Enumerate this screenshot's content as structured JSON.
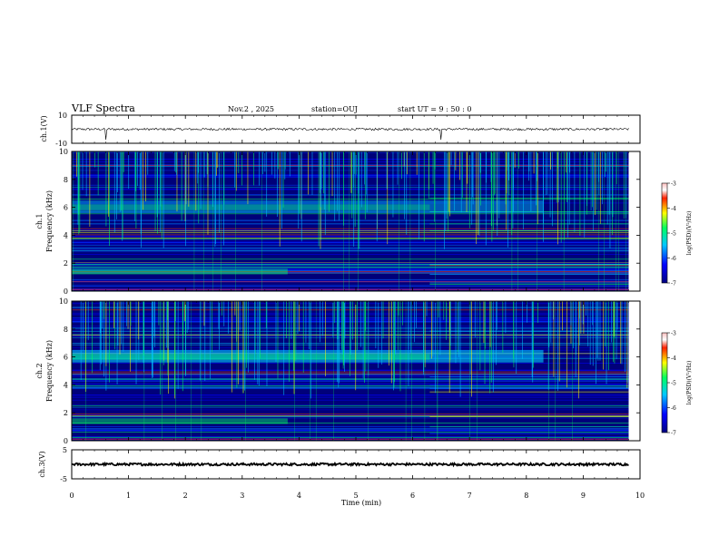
{
  "chart_data": {
    "type": "heatmap",
    "title": "VLF Spectra",
    "date": "Nov.2 , 2025",
    "station": "station=OUJ",
    "start_ut": "start UT = 9 : 50 : 0",
    "xlabel": "Time (min)",
    "xlim": [
      0,
      10
    ],
    "xticks": [
      0,
      1,
      2,
      3,
      4,
      5,
      6,
      7,
      8,
      9,
      10
    ],
    "data_end_min": 9.8,
    "panels": [
      {
        "id": "ch1-waveform",
        "type": "line",
        "ylabel": "ch.1(V)",
        "ylim": [
          -10,
          10
        ],
        "yticks": [
          -10,
          10
        ],
        "baseline": 0,
        "noise_amplitude": 0.8,
        "spikes_min": [
          0.6,
          6.5
        ]
      },
      {
        "id": "ch1-spectrogram",
        "type": "heatmap",
        "ylabel": "ch.1",
        "ylabel2": "Frequency (kHz)",
        "ylim": [
          0,
          10
        ],
        "yticks": [
          0,
          2,
          4,
          6,
          8,
          10
        ],
        "band_khz": [
          5.6,
          6.5
        ],
        "band_end_min": 8.3,
        "colorbar": {
          "label": "log(PSD)(V²/Hz)",
          "range": [
            -7,
            -3
          ],
          "ticks": [
            -3,
            -4,
            -5,
            -6,
            -7
          ]
        }
      },
      {
        "id": "ch2-spectrogram",
        "type": "heatmap",
        "ylabel": "ch.2",
        "ylabel2": "Frequency (kHz)",
        "ylim": [
          0,
          10
        ],
        "yticks": [
          0,
          2,
          4,
          6,
          8,
          10
        ],
        "band_khz": [
          5.6,
          6.5
        ],
        "band_end_min": 8.3,
        "colorbar": {
          "label": "log(PSD)(V²/Hz)",
          "range": [
            -7,
            -3
          ],
          "ticks": [
            -3,
            -4,
            -5,
            -6,
            -7
          ]
        }
      },
      {
        "id": "ch3-waveform",
        "type": "line",
        "ylabel": "ch.3(V)",
        "ylim": [
          -5,
          5
        ],
        "yticks": [
          -5,
          5
        ],
        "baseline": 0,
        "noise_amplitude": 0.4,
        "spikes_min": []
      }
    ],
    "colors": {
      "background": "#00007a",
      "low": "#0000ff",
      "mid": "#00c8ff",
      "high": "#00ff60",
      "peak": "#ffff00",
      "line": "#000000"
    }
  }
}
